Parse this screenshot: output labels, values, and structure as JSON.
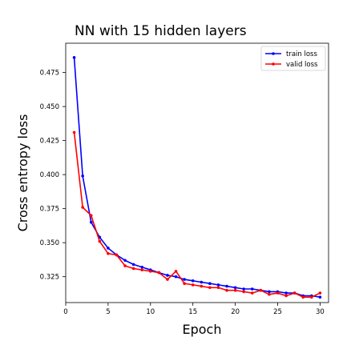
{
  "chart_data": {
    "type": "line",
    "title": "NN with 15 hidden layers",
    "xlabel": "Epoch",
    "ylabel": "Cross entropy loss",
    "xlim": [
      0,
      31
    ],
    "ylim": [
      0.306,
      0.4965
    ],
    "xticks": [
      0,
      5,
      10,
      15,
      20,
      25,
      30
    ],
    "yticks": [
      0.325,
      0.35,
      0.375,
      0.4,
      0.425,
      0.45,
      0.475
    ],
    "ytick_labels": [
      "0.325",
      "0.350",
      "0.375",
      "0.400",
      "0.425",
      "0.450",
      "0.475"
    ],
    "grid": false,
    "legend_position": "top-right",
    "x": [
      1,
      2,
      3,
      4,
      5,
      6,
      7,
      8,
      9,
      10,
      11,
      12,
      13,
      14,
      15,
      16,
      17,
      18,
      19,
      20,
      21,
      22,
      23,
      24,
      25,
      26,
      27,
      28,
      29,
      30
    ],
    "series": [
      {
        "name": "train loss",
        "color": "#0000ff",
        "values": [
          0.486,
          0.399,
          0.365,
          0.354,
          0.346,
          0.341,
          0.337,
          0.334,
          0.332,
          0.33,
          0.328,
          0.326,
          0.325,
          0.323,
          0.322,
          0.321,
          0.32,
          0.319,
          0.318,
          0.317,
          0.316,
          0.316,
          0.315,
          0.314,
          0.314,
          0.313,
          0.313,
          0.311,
          0.311,
          0.31
        ]
      },
      {
        "name": "valid loss",
        "color": "#ff0000",
        "values": [
          0.431,
          0.376,
          0.37,
          0.351,
          0.342,
          0.341,
          0.333,
          0.331,
          0.33,
          0.329,
          0.328,
          0.323,
          0.329,
          0.32,
          0.319,
          0.318,
          0.317,
          0.317,
          0.315,
          0.315,
          0.314,
          0.313,
          0.315,
          0.312,
          0.313,
          0.311,
          0.313,
          0.31,
          0.31,
          0.313
        ]
      }
    ]
  }
}
